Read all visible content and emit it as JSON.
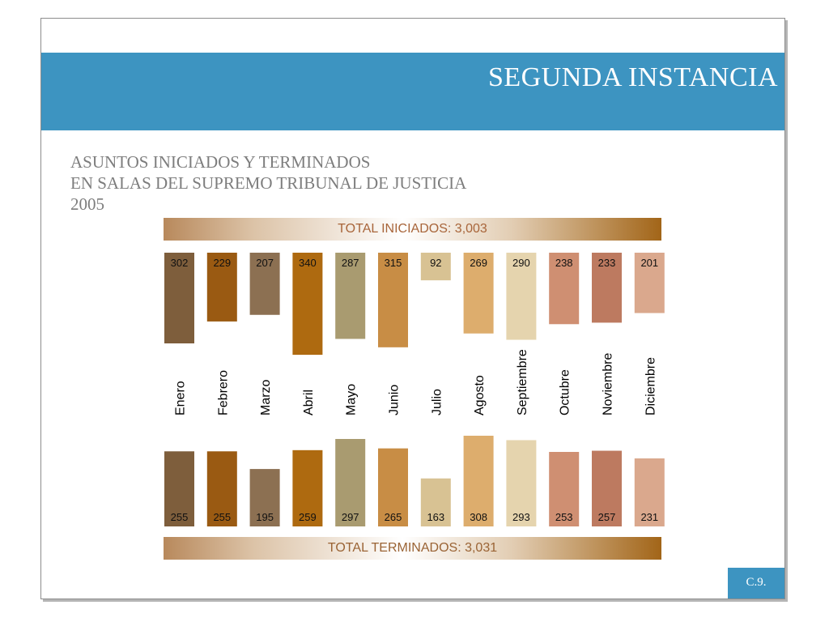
{
  "slide": {
    "banner_title": "SEGUNDA INSTANCIA",
    "subtitle_lines": [
      "ASUNTOS INICIADOS Y TERMINADOS",
      "EN SALAS DEL SUPREMO TRIBUNAL DE JUSTICIA",
      "2005"
    ],
    "footer_label": "C.9."
  },
  "colors": {
    "banner": "#3d94c1",
    "months": [
      "#7e5e3c",
      "#9a5a12",
      "#8c7052",
      "#ae6a10",
      "#a99b70",
      "#c88d45",
      "#d8c293",
      "#ddad6d",
      "#e5d4ae",
      "#cf8f72",
      "#bd7a60",
      "#daa88d"
    ]
  },
  "chart_data": {
    "type": "bar",
    "categories": [
      "Enero",
      "Febrero",
      "Marzo",
      "Abril",
      "Mayo",
      "Junio",
      "Julio",
      "Agosto",
      "Septiembre",
      "Octubre",
      "Noviembre",
      "Diciembre"
    ],
    "series": [
      {
        "name": "TOTAL INICIADOS: 3,003",
        "values": [
          302,
          229,
          207,
          340,
          287,
          315,
          92,
          269,
          290,
          238,
          233,
          201
        ]
      },
      {
        "name": "TOTAL TERMINADOS: 3,031",
        "values": [
          255,
          255,
          195,
          259,
          297,
          265,
          163,
          308,
          293,
          253,
          257,
          231
        ]
      }
    ]
  }
}
